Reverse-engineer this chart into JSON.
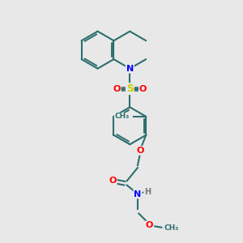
{
  "background_color": "#e8e8e8",
  "bond_color": "#2d6e6e",
  "atom_colors": {
    "N": "#0000ff",
    "O": "#ff0000",
    "S": "#cccc00",
    "H": "#777777",
    "C": "#2d6e6e"
  },
  "figsize": [
    3.0,
    3.0
  ],
  "dpi": 100,
  "xlim": [
    0,
    10
  ],
  "ylim": [
    0,
    10
  ]
}
